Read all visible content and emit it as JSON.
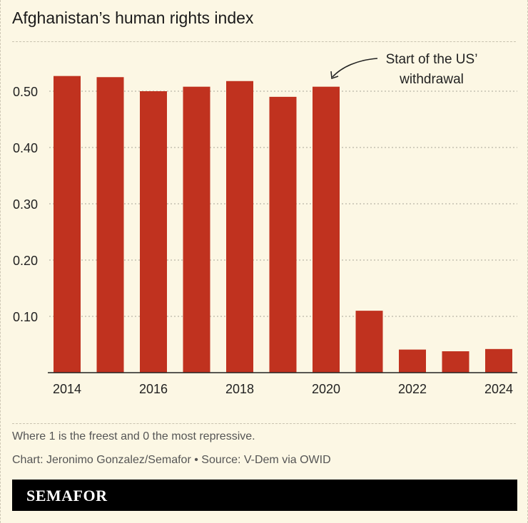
{
  "title": "Afghanistan’s human rights index",
  "chart_data": {
    "type": "bar",
    "title": "Afghanistan’s human rights index",
    "categories": [
      "2014",
      "2015",
      "2016",
      "2017",
      "2018",
      "2019",
      "2020",
      "2021",
      "2022",
      "2023",
      "2024"
    ],
    "values": [
      0.527,
      0.525,
      0.5,
      0.508,
      0.518,
      0.49,
      0.508,
      0.11,
      0.041,
      0.038,
      0.042
    ],
    "ylim": [
      0,
      0.58
    ],
    "yticks": [
      0.1,
      0.2,
      0.3,
      0.4,
      0.5
    ],
    "ytick_labels": [
      "0.10",
      "0.20",
      "0.30",
      "0.40",
      "0.50"
    ],
    "xtick_labels": [
      "2014",
      "2016",
      "2018",
      "2020",
      "2022",
      "2024"
    ],
    "grid": true,
    "bar_color": "#c0321f",
    "annotation": {
      "lines": [
        "Start of the US’",
        "withdrawal"
      ],
      "target": "2020"
    }
  },
  "footnote": "Where 1 is the freest and 0 the most repressive.",
  "source": "Chart: Jeronimo Gonzalez/Semafor • Source: V-Dem via OWID",
  "brand": "SEMAFOR"
}
